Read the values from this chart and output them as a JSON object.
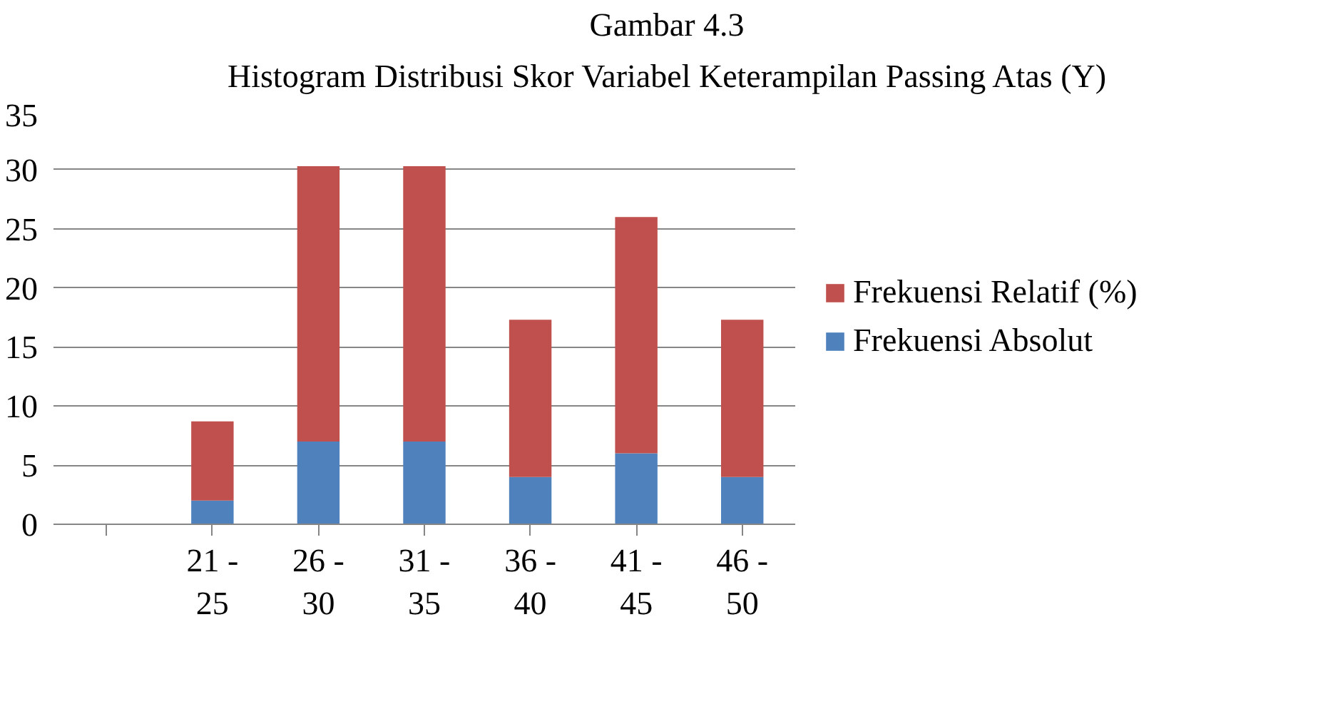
{
  "chart_data": {
    "type": "bar",
    "title": "Gambar 4.3",
    "subtitle": "Histogram Distribusi Skor Variabel Keterampilan Passing Atas (Y)",
    "categories": [
      null,
      "21 - 25",
      "26 - 30",
      "31 - 35",
      "36 - 40",
      "41 - 45",
      "46 - 50"
    ],
    "stacked": true,
    "series": [
      {
        "name": "Frekuensi Absolut",
        "color": "#4f81bd",
        "values": [
          null,
          2,
          7,
          7,
          4,
          6,
          4
        ]
      },
      {
        "name": "Frekuensi Relatif (%)",
        "color": "#c0504d",
        "values": [
          null,
          6.7,
          23.3,
          23.3,
          13.3,
          20,
          13.3
        ]
      }
    ],
    "ylim": [
      0,
      35
    ],
    "yticks": [
      0,
      5,
      10,
      15,
      20,
      25,
      30,
      35
    ],
    "grid": "y",
    "legend": "right"
  }
}
